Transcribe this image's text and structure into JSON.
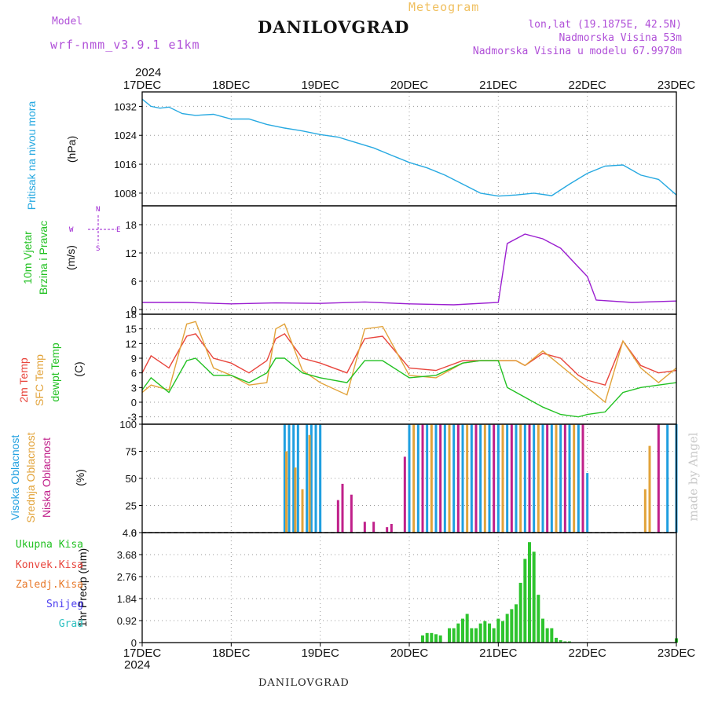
{
  "header": {
    "model_label": "Model",
    "model_name": "wrf-nmm_v3.9.1 e1km",
    "title": "DANILOVGRAD",
    "meteogram_label": "Meteogram",
    "location": "lon,lat (19.1875E, 42.5N)",
    "elevation": "Nadmorska Visina 53m",
    "model_elevation": "Nadmorska Visina u modelu 67.9978m"
  },
  "footer": {
    "station": "DANILOVGRAD",
    "year_top": "2024",
    "year_bottom": "2024",
    "watermark": "made by Angel"
  },
  "colors": {
    "pressure": "#27a9e1",
    "temp2m": "#e8453c",
    "sfc_temp": "#e2a33a",
    "dewpt": "#22c122",
    "high_cloud": "#1f9fe0",
    "mid_cloud": "#e2a33a",
    "low_cloud": "#c0208a",
    "total_precip": "#2ec42e",
    "wind_calm": "#9b1fd0",
    "grid": "#999999"
  },
  "panel_labels": {
    "pressure": {
      "name": "Pritisak na nivou mora",
      "unit": "(hPa)"
    },
    "wind": {
      "name1": "10m Vjetar",
      "name2": "Brzina i Pravac",
      "unit": "(m/s)",
      "compass": {
        "n": "N",
        "s": "S",
        "e": "E",
        "w": "W"
      }
    },
    "temp": {
      "t2m": "2m Temp",
      "sfc": "SFC Temp",
      "dew": "dewpt Temp",
      "unit": "(C)"
    },
    "cloud": {
      "high": "Visoka Oblacnost",
      "mid": "Srednja Oblacnost",
      "low": "Niska Oblacnost",
      "unit": "(%)"
    },
    "precip": {
      "axis": "1hr Precip (mm)",
      "legend": [
        "Ukupna Kisa",
        "Konvek.Kisa",
        "Zaledj.Kisa",
        "Snijeg",
        "Grad"
      ]
    }
  },
  "chart_data": [
    {
      "type": "line",
      "panel": "pressure",
      "x_ticks": [
        "17DEC",
        "18DEC",
        "19DEC",
        "20DEC",
        "21DEC",
        "22DEC",
        "23DEC"
      ],
      "yticks": [
        1008,
        1016,
        1024,
        1032
      ],
      "ylim": [
        1004.5,
        1036
      ],
      "series": [
        {
          "name": "Pritisak na nivou mora",
          "x": [
            0,
            0.1,
            0.2,
            0.3,
            0.45,
            0.6,
            0.8,
            1.0,
            1.2,
            1.4,
            1.6,
            1.8,
            2.0,
            2.2,
            2.4,
            2.6,
            2.8,
            3.0,
            3.2,
            3.4,
            3.6,
            3.8,
            4.0,
            4.2,
            4.4,
            4.6,
            4.8,
            5.0,
            5.2,
            5.4,
            5.6,
            5.8,
            6.0
          ],
          "y": [
            1034,
            1032,
            1031.5,
            1031.8,
            1030,
            1029.5,
            1029.8,
            1028.5,
            1028.5,
            1027,
            1026,
            1025.2,
            1024.2,
            1023.5,
            1022,
            1020.5,
            1018.5,
            1016.5,
            1015,
            1013,
            1010.5,
            1008,
            1007.2,
            1007.5,
            1008,
            1007.3,
            1010.5,
            1013.5,
            1015.5,
            1015.8,
            1013,
            1011.8,
            1007.5
          ]
        }
      ],
      "grid": true
    },
    {
      "type": "line",
      "panel": "wind",
      "x_ticks": [
        "17DEC",
        "18DEC",
        "19DEC",
        "20DEC",
        "21DEC",
        "22DEC",
        "23DEC"
      ],
      "yticks": [
        0,
        6,
        12,
        18
      ],
      "ylim": [
        -1,
        22
      ],
      "series": [
        {
          "name": "10m Vjetar",
          "x": [
            0,
            0.5,
            1.0,
            1.5,
            2.0,
            2.5,
            3.0,
            3.5,
            4.0,
            4.1,
            4.3,
            4.5,
            4.7,
            4.9,
            5.0,
            5.1,
            5.5,
            6.0
          ],
          "y": [
            1.5,
            1.5,
            1.2,
            1.4,
            1.3,
            1.6,
            1.2,
            1.0,
            1.5,
            14,
            16,
            15,
            13,
            9,
            7,
            2,
            1.5,
            1.8
          ]
        }
      ],
      "grid": true
    },
    {
      "type": "line",
      "panel": "temperature",
      "x_ticks": [
        "17DEC",
        "18DEC",
        "19DEC",
        "20DEC",
        "21DEC",
        "22DEC",
        "23DEC"
      ],
      "yticks": [
        -3,
        0,
        3,
        6,
        9,
        12,
        15,
        18
      ],
      "ylim": [
        -4.5,
        18
      ],
      "series": [
        {
          "name": "2m Temp",
          "x": [
            0,
            0.1,
            0.3,
            0.5,
            0.6,
            0.8,
            1.0,
            1.2,
            1.4,
            1.5,
            1.6,
            1.8,
            2.0,
            2.3,
            2.5,
            2.7,
            3.0,
            3.3,
            3.6,
            3.8,
            4.0,
            4.2,
            4.3,
            4.5,
            4.7,
            4.9,
            5.0,
            5.2,
            5.4,
            5.6,
            5.8,
            6.0
          ],
          "y": [
            6,
            9.5,
            7,
            13.5,
            14,
            9,
            8,
            6,
            8.5,
            13,
            14,
            9,
            8,
            6,
            13,
            13.5,
            7,
            6.5,
            8.5,
            8.5,
            8.5,
            8.5,
            7.5,
            10,
            9,
            5.5,
            4.5,
            3.5,
            12.5,
            7.5,
            6,
            6.5
          ]
        },
        {
          "name": "SFC Temp",
          "x": [
            0,
            0.1,
            0.3,
            0.5,
            0.6,
            0.8,
            1.0,
            1.2,
            1.4,
            1.5,
            1.6,
            1.8,
            2.0,
            2.3,
            2.5,
            2.7,
            3.0,
            3.3,
            3.6,
            3.8,
            4.0,
            4.2,
            4.3,
            4.5,
            4.7,
            4.9,
            5.0,
            5.2,
            5.4,
            5.6,
            5.8,
            6.0
          ],
          "y": [
            2,
            3.5,
            2.5,
            16,
            16.5,
            7,
            5.5,
            3.5,
            4,
            15,
            16,
            6.5,
            4,
            1.5,
            15,
            15.5,
            5.5,
            5,
            8,
            8.5,
            8.5,
            8.5,
            7.5,
            10.5,
            7.5,
            4.5,
            3,
            0,
            12.5,
            7,
            4,
            7
          ]
        },
        {
          "name": "dewpt Temp",
          "x": [
            0,
            0.1,
            0.3,
            0.5,
            0.6,
            0.8,
            1.0,
            1.2,
            1.4,
            1.5,
            1.6,
            1.8,
            2.0,
            2.3,
            2.5,
            2.7,
            3.0,
            3.3,
            3.6,
            3.8,
            4.0,
            4.1,
            4.3,
            4.5,
            4.7,
            4.9,
            5.0,
            5.2,
            5.4,
            5.6,
            5.8,
            6.0
          ],
          "y": [
            2.5,
            5,
            2,
            8.5,
            9,
            5.5,
            5.5,
            4,
            6,
            9,
            9,
            6,
            5,
            4,
            8.5,
            8.5,
            5,
            5.5,
            8,
            8.5,
            8.5,
            3,
            1,
            -1,
            -2.5,
            -3,
            -2.5,
            -2,
            2,
            3,
            3.5,
            4
          ]
        }
      ],
      "grid": true
    },
    {
      "type": "bar",
      "panel": "cloud",
      "x_ticks": [
        "17DEC",
        "18DEC",
        "19DEC",
        "20DEC",
        "21DEC",
        "22DEC",
        "23DEC"
      ],
      "yticks": [
        0,
        25,
        50,
        75,
        100
      ],
      "ylim": [
        0,
        100
      ],
      "series": [
        {
          "name": "Visoka Oblacnost",
          "x": [
            1.6,
            1.65,
            1.7,
            1.75,
            1.85,
            1.9,
            1.95,
            2.0,
            3.0,
            3.1,
            3.2,
            3.3,
            3.4,
            3.5,
            3.6,
            3.7,
            3.8,
            3.9,
            4.0,
            4.1,
            4.2,
            4.3,
            4.4,
            4.5,
            4.6,
            4.7,
            4.8,
            4.9,
            5.0,
            5.9,
            6.0
          ],
          "values": [
            100,
            100,
            100,
            100,
            100,
            100,
            100,
            100,
            100,
            100,
            100,
            100,
            100,
            100,
            100,
            100,
            100,
            100,
            100,
            100,
            100,
            100,
            100,
            100,
            100,
            100,
            100,
            100,
            55,
            100,
            100
          ]
        },
        {
          "name": "Srednja Oblacnost",
          "x": [
            1.62,
            1.72,
            1.8,
            1.88,
            3.05,
            3.25,
            3.45,
            3.65,
            3.85,
            4.05,
            4.25,
            4.45,
            4.65,
            4.85,
            5.65,
            5.7
          ],
          "values": [
            75,
            60,
            40,
            90,
            100,
            100,
            100,
            100,
            100,
            100,
            100,
            100,
            100,
            100,
            40,
            80
          ]
        },
        {
          "name": "Niska Oblacnost",
          "x": [
            2.2,
            2.25,
            2.35,
            2.5,
            2.6,
            2.75,
            2.8,
            2.95,
            3.15,
            3.35,
            3.55,
            3.75,
            3.95,
            4.15,
            4.35,
            4.55,
            4.75,
            4.95,
            5.8
          ],
          "values": [
            30,
            45,
            35,
            10,
            10,
            5,
            8,
            70,
            100,
            100,
            100,
            100,
            100,
            100,
            100,
            100,
            100,
            100,
            100
          ]
        }
      ],
      "grid": true
    },
    {
      "type": "bar",
      "panel": "precip",
      "x_ticks": [
        "17DEC",
        "18DEC",
        "19DEC",
        "20DEC",
        "21DEC",
        "22DEC",
        "23DEC"
      ],
      "yticks": [
        0,
        0.92,
        1.84,
        2.76,
        3.68,
        4.6
      ],
      "ylim": [
        0,
        4.6
      ],
      "series": [
        {
          "name": "Ukupna Kisa",
          "x": [
            3.15,
            3.2,
            3.25,
            3.3,
            3.35,
            3.45,
            3.5,
            3.55,
            3.6,
            3.65,
            3.7,
            3.75,
            3.8,
            3.85,
            3.9,
            3.95,
            4.0,
            4.05,
            4.1,
            4.15,
            4.2,
            4.25,
            4.3,
            4.35,
            4.4,
            4.45,
            4.5,
            4.55,
            4.6,
            4.65,
            4.7,
            4.75,
            4.8,
            4.85,
            4.9,
            4.95,
            5.0,
            5.05,
            5.1,
            5.15,
            5.2,
            5.25,
            5.3,
            5.35,
            5.4,
            5.45,
            5.5,
            5.55,
            5.6,
            5.65,
            5.7,
            5.75,
            5.8,
            5.85,
            5.9,
            5.95,
            6.0
          ],
          "values": [
            0.3,
            0.4,
            0.4,
            0.35,
            0.3,
            0.6,
            0.6,
            0.8,
            1.0,
            1.2,
            0.6,
            0.6,
            0.8,
            0.9,
            0.8,
            0.6,
            1.0,
            0.9,
            1.2,
            1.4,
            1.6,
            2.5,
            3.5,
            4.2,
            3.8,
            2.0,
            1.0,
            0.6,
            0.6,
            0.2,
            0.1,
            0.05,
            0.05,
            0,
            0,
            0,
            0,
            0,
            0,
            0,
            0,
            0,
            0,
            0,
            0,
            0,
            0,
            0,
            0,
            0,
            0,
            0,
            0,
            0,
            0,
            0,
            0.18
          ]
        }
      ],
      "grid": true
    }
  ]
}
